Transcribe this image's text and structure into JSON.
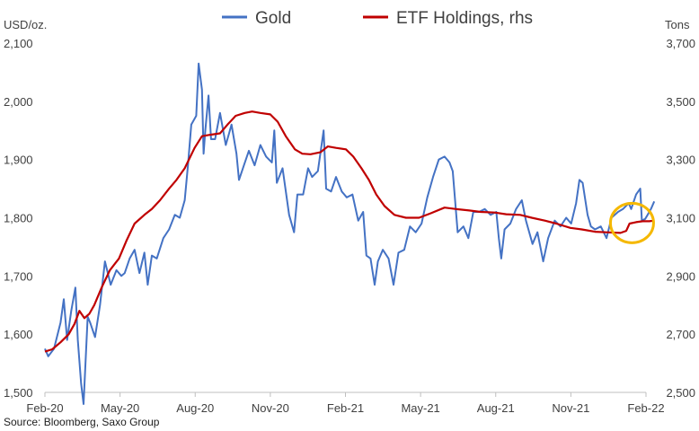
{
  "chart_data": {
    "type": "line",
    "title": "",
    "left_axis_title": "USD/oz.",
    "right_axis_title": "Tons",
    "source": "Source: Bloomberg, Saxo Group",
    "x_ticks": [
      "Feb-20",
      "May-20",
      "Aug-20",
      "Nov-20",
      "Feb-21",
      "May-21",
      "Aug-21",
      "Nov-21",
      "Feb-22"
    ],
    "y_left_ticks": [
      "1,500",
      "1,600",
      "1,700",
      "1,800",
      "1,900",
      "2,000",
      "2,100"
    ],
    "y_right_ticks": [
      "2,500",
      "2,700",
      "2,900",
      "3,100",
      "3,300",
      "3,500",
      "3,700"
    ],
    "ylim_left": [
      1500,
      2100
    ],
    "ylim_right": [
      2500,
      3700
    ],
    "xlim": [
      "2020-02-01",
      "2022-02-01"
    ],
    "legend_position": "top",
    "grid": false,
    "colors": {
      "gold": "#4472c4",
      "etf": "#c00000",
      "highlight": "#f5b800"
    },
    "highlight": {
      "type": "circle",
      "x": "2022-01-15",
      "y_left": 1791
    },
    "series": [
      {
        "name": "Gold",
        "axis": "left",
        "points": [
          [
            "2020-02-01",
            1575
          ],
          [
            "2020-02-05",
            1562
          ],
          [
            "2020-02-12",
            1575
          ],
          [
            "2020-02-20",
            1620
          ],
          [
            "2020-02-24",
            1660
          ],
          [
            "2020-02-28",
            1590
          ],
          [
            "2020-03-04",
            1640
          ],
          [
            "2020-03-09",
            1680
          ],
          [
            "2020-03-12",
            1590
          ],
          [
            "2020-03-16",
            1515
          ],
          [
            "2020-03-19",
            1480
          ],
          [
            "2020-03-24",
            1630
          ],
          [
            "2020-03-27",
            1620
          ],
          [
            "2020-04-02",
            1595
          ],
          [
            "2020-04-08",
            1650
          ],
          [
            "2020-04-14",
            1725
          ],
          [
            "2020-04-21",
            1685
          ],
          [
            "2020-04-28",
            1710
          ],
          [
            "2020-05-04",
            1700
          ],
          [
            "2020-05-08",
            1705
          ],
          [
            "2020-05-14",
            1730
          ],
          [
            "2020-05-20",
            1745
          ],
          [
            "2020-05-26",
            1705
          ],
          [
            "2020-06-01",
            1740
          ],
          [
            "2020-06-05",
            1685
          ],
          [
            "2020-06-10",
            1735
          ],
          [
            "2020-06-16",
            1730
          ],
          [
            "2020-06-24",
            1765
          ],
          [
            "2020-07-01",
            1780
          ],
          [
            "2020-07-08",
            1805
          ],
          [
            "2020-07-14",
            1800
          ],
          [
            "2020-07-20",
            1830
          ],
          [
            "2020-07-24",
            1890
          ],
          [
            "2020-07-28",
            1960
          ],
          [
            "2020-08-03",
            1975
          ],
          [
            "2020-08-06",
            2065
          ],
          [
            "2020-08-10",
            2020
          ],
          [
            "2020-08-12",
            1910
          ],
          [
            "2020-08-14",
            1950
          ],
          [
            "2020-08-18",
            2010
          ],
          [
            "2020-08-21",
            1935
          ],
          [
            "2020-08-26",
            1935
          ],
          [
            "2020-09-01",
            1980
          ],
          [
            "2020-09-08",
            1925
          ],
          [
            "2020-09-15",
            1960
          ],
          [
            "2020-09-21",
            1910
          ],
          [
            "2020-09-24",
            1865
          ],
          [
            "2020-09-30",
            1890
          ],
          [
            "2020-10-06",
            1915
          ],
          [
            "2020-10-13",
            1890
          ],
          [
            "2020-10-20",
            1925
          ],
          [
            "2020-10-27",
            1905
          ],
          [
            "2020-11-03",
            1895
          ],
          [
            "2020-11-06",
            1950
          ],
          [
            "2020-11-09",
            1860
          ],
          [
            "2020-11-16",
            1885
          ],
          [
            "2020-11-24",
            1805
          ],
          [
            "2020-11-30",
            1775
          ],
          [
            "2020-12-04",
            1840
          ],
          [
            "2020-12-11",
            1840
          ],
          [
            "2020-12-17",
            1885
          ],
          [
            "2020-12-22",
            1870
          ],
          [
            "2020-12-29",
            1880
          ],
          [
            "2021-01-05",
            1950
          ],
          [
            "2021-01-08",
            1850
          ],
          [
            "2021-01-14",
            1845
          ],
          [
            "2021-01-20",
            1870
          ],
          [
            "2021-01-27",
            1845
          ],
          [
            "2021-02-02",
            1835
          ],
          [
            "2021-02-09",
            1840
          ],
          [
            "2021-02-16",
            1795
          ],
          [
            "2021-02-22",
            1810
          ],
          [
            "2021-02-26",
            1735
          ],
          [
            "2021-03-03",
            1730
          ],
          [
            "2021-03-08",
            1685
          ],
          [
            "2021-03-12",
            1725
          ],
          [
            "2021-03-18",
            1745
          ],
          [
            "2021-03-25",
            1730
          ],
          [
            "2021-03-31",
            1685
          ],
          [
            "2021-04-06",
            1740
          ],
          [
            "2021-04-13",
            1745
          ],
          [
            "2021-04-20",
            1785
          ],
          [
            "2021-04-27",
            1775
          ],
          [
            "2021-05-04",
            1790
          ],
          [
            "2021-05-11",
            1835
          ],
          [
            "2021-05-18",
            1870
          ],
          [
            "2021-05-25",
            1900
          ],
          [
            "2021-06-01",
            1905
          ],
          [
            "2021-06-07",
            1895
          ],
          [
            "2021-06-11",
            1880
          ],
          [
            "2021-06-17",
            1775
          ],
          [
            "2021-06-24",
            1785
          ],
          [
            "2021-06-30",
            1765
          ],
          [
            "2021-07-06",
            1810
          ],
          [
            "2021-07-13",
            1810
          ],
          [
            "2021-07-20",
            1815
          ],
          [
            "2021-07-27",
            1805
          ],
          [
            "2021-08-03",
            1810
          ],
          [
            "2021-08-06",
            1765
          ],
          [
            "2021-08-09",
            1730
          ],
          [
            "2021-08-13",
            1780
          ],
          [
            "2021-08-20",
            1790
          ],
          [
            "2021-08-27",
            1815
          ],
          [
            "2021-09-03",
            1830
          ],
          [
            "2021-09-08",
            1795
          ],
          [
            "2021-09-16",
            1755
          ],
          [
            "2021-09-22",
            1775
          ],
          [
            "2021-09-29",
            1725
          ],
          [
            "2021-10-05",
            1765
          ],
          [
            "2021-10-13",
            1795
          ],
          [
            "2021-10-20",
            1785
          ],
          [
            "2021-10-27",
            1800
          ],
          [
            "2021-11-02",
            1790
          ],
          [
            "2021-11-08",
            1825
          ],
          [
            "2021-11-12",
            1865
          ],
          [
            "2021-11-16",
            1860
          ],
          [
            "2021-11-22",
            1805
          ],
          [
            "2021-11-26",
            1785
          ],
          [
            "2021-12-01",
            1780
          ],
          [
            "2021-12-08",
            1785
          ],
          [
            "2021-12-15",
            1765
          ],
          [
            "2021-12-21",
            1800
          ],
          [
            "2021-12-29",
            1810
          ],
          [
            "2022-01-04",
            1815
          ],
          [
            "2022-01-11",
            1825
          ],
          [
            "2022-01-14",
            1815
          ],
          [
            "2022-01-20",
            1840
          ],
          [
            "2022-01-25",
            1850
          ],
          [
            "2022-01-27",
            1795
          ],
          [
            "2022-01-31",
            1798
          ],
          [
            "2022-02-03",
            1805
          ],
          [
            "2022-02-07",
            1815
          ],
          [
            "2022-02-11",
            1828
          ]
        ]
      },
      {
        "name": "ETF Holdings, rhs",
        "axis": "right",
        "points": [
          [
            "2020-02-01",
            2640
          ],
          [
            "2020-02-10",
            2648
          ],
          [
            "2020-02-20",
            2672
          ],
          [
            "2020-03-01",
            2700
          ],
          [
            "2020-03-08",
            2735
          ],
          [
            "2020-03-14",
            2780
          ],
          [
            "2020-03-20",
            2755
          ],
          [
            "2020-03-26",
            2770
          ],
          [
            "2020-04-01",
            2800
          ],
          [
            "2020-04-10",
            2860
          ],
          [
            "2020-04-20",
            2920
          ],
          [
            "2020-05-01",
            2960
          ],
          [
            "2020-05-10",
            3020
          ],
          [
            "2020-05-20",
            3080
          ],
          [
            "2020-06-01",
            3110
          ],
          [
            "2020-06-10",
            3130
          ],
          [
            "2020-06-20",
            3160
          ],
          [
            "2020-07-01",
            3200
          ],
          [
            "2020-07-10",
            3230
          ],
          [
            "2020-07-20",
            3270
          ],
          [
            "2020-08-01",
            3340
          ],
          [
            "2020-08-10",
            3380
          ],
          [
            "2020-08-20",
            3385
          ],
          [
            "2020-09-01",
            3390
          ],
          [
            "2020-09-10",
            3420
          ],
          [
            "2020-09-20",
            3450
          ],
          [
            "2020-10-01",
            3460
          ],
          [
            "2020-10-10",
            3465
          ],
          [
            "2020-10-20",
            3460
          ],
          [
            "2020-11-01",
            3455
          ],
          [
            "2020-11-10",
            3430
          ],
          [
            "2020-11-20",
            3380
          ],
          [
            "2020-12-01",
            3335
          ],
          [
            "2020-12-10",
            3320
          ],
          [
            "2020-12-20",
            3318
          ],
          [
            "2021-01-01",
            3325
          ],
          [
            "2021-01-10",
            3345
          ],
          [
            "2021-01-20",
            3340
          ],
          [
            "2021-02-01",
            3335
          ],
          [
            "2021-02-10",
            3310
          ],
          [
            "2021-02-20",
            3270
          ],
          [
            "2021-03-01",
            3230
          ],
          [
            "2021-03-10",
            3180
          ],
          [
            "2021-03-20",
            3140
          ],
          [
            "2021-04-01",
            3110
          ],
          [
            "2021-04-15",
            3100
          ],
          [
            "2021-05-01",
            3100
          ],
          [
            "2021-05-15",
            3115
          ],
          [
            "2021-06-01",
            3135
          ],
          [
            "2021-06-15",
            3130
          ],
          [
            "2021-07-01",
            3125
          ],
          [
            "2021-07-15",
            3120
          ],
          [
            "2021-08-01",
            3118
          ],
          [
            "2021-08-15",
            3112
          ],
          [
            "2021-09-01",
            3110
          ],
          [
            "2021-09-15",
            3100
          ],
          [
            "2021-10-01",
            3090
          ],
          [
            "2021-10-15",
            3080
          ],
          [
            "2021-11-01",
            3065
          ],
          [
            "2021-11-15",
            3060
          ],
          [
            "2021-12-01",
            3052
          ],
          [
            "2021-12-15",
            3050
          ],
          [
            "2022-01-01",
            3048
          ],
          [
            "2022-01-08",
            3055
          ],
          [
            "2022-01-12",
            3080
          ],
          [
            "2022-01-20",
            3085
          ],
          [
            "2022-01-28",
            3088
          ],
          [
            "2022-02-05",
            3088
          ],
          [
            "2022-02-11",
            3090
          ]
        ]
      }
    ]
  }
}
